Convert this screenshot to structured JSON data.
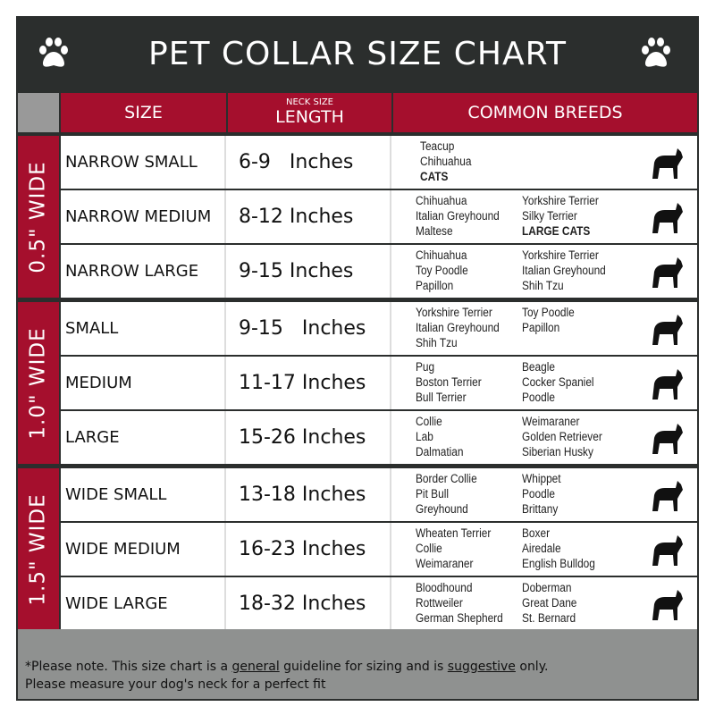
{
  "title": "PET COLLAR SIZE CHART",
  "icons": {
    "left": "paw-icon",
    "right": "paw-icon"
  },
  "colors": {
    "header_red": "#a50f2d",
    "title_bg": "#2b2e2d",
    "footer_gray": "#8f9190"
  },
  "header": {
    "size": "SIZE",
    "length_small": "NECK SIZE",
    "length": "LENGTH",
    "breeds": "COMMON BREEDS"
  },
  "groups": [
    "0.5\" WIDE",
    "1.0\" WIDE",
    "1.5\" WIDE"
  ],
  "rows": [
    {
      "size": "NARROW SMALL",
      "length": "6-9   Inches",
      "col1": [
        "Teacup",
        "Chihuahua",
        "CATS"
      ],
      "col2": [],
      "pet": "cat-icon"
    },
    {
      "size": "NARROW MEDIUM",
      "length": "8-12 Inches",
      "col1": [
        "Chihuahua",
        "Italian Greyhound",
        "Maltese"
      ],
      "col2": [
        "Yorkshire Terrier",
        "Silky Terrier",
        "LARGE CATS"
      ],
      "pet": "chihuahua-icon"
    },
    {
      "size": "NARROW LARGE",
      "length": "9-15 Inches",
      "col1": [
        "Chihuahua",
        "Toy Poodle",
        "Papillon"
      ],
      "col2": [
        "Yorkshire Terrier",
        "Italian Greyhound",
        "Shih Tzu"
      ],
      "pet": "pomeranian-icon"
    },
    {
      "size": "SMALL",
      "length": "9-15   Inches",
      "col1": [
        "Yorkshire Terrier",
        "Italian Greyhound",
        "Shih Tzu"
      ],
      "col2": [
        "Toy Poodle",
        "Papillon"
      ],
      "pet": "pomeranian-icon"
    },
    {
      "size": "MEDIUM",
      "length": "11-17 Inches",
      "col1": [
        "Pug",
        "Boston Terrier",
        "Bull Terrier"
      ],
      "col2": [
        "Beagle",
        "Cocker Spaniel",
        "Poodle"
      ],
      "pet": "dachshund-icon"
    },
    {
      "size": "LARGE",
      "length": "15-26 Inches",
      "col1": [
        "Collie",
        "Lab",
        "Dalmatian"
      ],
      "col2": [
        "Weimaraner",
        "Golden Retriever",
        "Siberian Husky"
      ],
      "pet": "shepherd-icon"
    },
    {
      "size": "WIDE SMALL",
      "length": "13-18 Inches",
      "col1": [
        "Border Collie",
        "Pit Bull",
        "Greyhound"
      ],
      "col2": [
        "Whippet",
        "Poodle",
        "Brittany"
      ],
      "pet": "bulldog-icon"
    },
    {
      "size": "WIDE MEDIUM",
      "length": "16-23 Inches",
      "col1": [
        "Wheaten Terrier",
        "Collie",
        "Weimaraner"
      ],
      "col2": [
        "Boxer",
        "Airedale",
        "English Bulldog"
      ],
      "pet": "pitbull-icon"
    },
    {
      "size": "WIDE LARGE",
      "length": "18-32 Inches",
      "col1": [
        "Bloodhound",
        "Rottweiler",
        "German Shepherd"
      ],
      "col2": [
        "Doberman",
        "Great Dane",
        "St. Bernard"
      ],
      "pet": "doberman-icon"
    }
  ],
  "footer": {
    "p1": "*Please note. This size chart is a ",
    "u1": "general",
    "p2": " guideline for sizing and is ",
    "u2": "suggestive",
    "p3": " only.",
    "line2": "Please measure your dog's neck for a perfect fit"
  }
}
